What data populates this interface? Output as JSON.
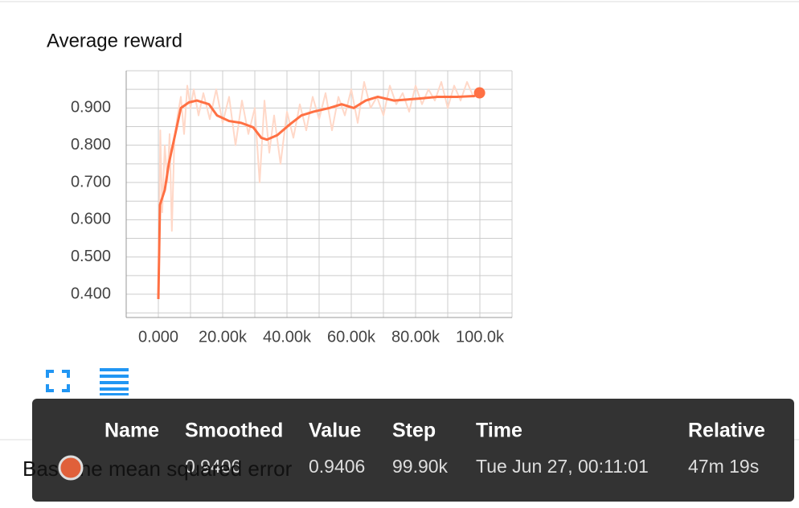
{
  "chart_data": {
    "type": "line",
    "title": "Average reward",
    "xlim": [
      -10000,
      110000
    ],
    "ylim": [
      0.3375,
      1.0
    ],
    "xticks": [
      {
        "value": 0,
        "label": "0.000"
      },
      {
        "value": 20000,
        "label": "20.00k"
      },
      {
        "value": 40000,
        "label": "40.00k"
      },
      {
        "value": 60000,
        "label": "60.00k"
      },
      {
        "value": 80000,
        "label": "80.00k"
      },
      {
        "value": 100000,
        "label": "100.0k"
      }
    ],
    "yticks": [
      {
        "value": 0.4,
        "label": "0.400"
      },
      {
        "value": 0.5,
        "label": "0.500"
      },
      {
        "value": 0.6,
        "label": "0.600"
      },
      {
        "value": 0.7,
        "label": "0.700"
      },
      {
        "value": 0.8,
        "label": "0.800"
      },
      {
        "value": 0.9,
        "label": "0.900"
      }
    ],
    "x_grid": [
      -10000,
      0,
      10000,
      20000,
      30000,
      40000,
      50000,
      60000,
      70000,
      80000,
      90000,
      100000,
      110000
    ],
    "y_grid": [
      0.35,
      0.4,
      0.45,
      0.5,
      0.55,
      0.6,
      0.65,
      0.7,
      0.75,
      0.8,
      0.85,
      0.9,
      0.95,
      1.0
    ],
    "grid": true,
    "series": [
      {
        "color": "#ffd8c8",
        "x": [
          0,
          600,
          1200,
          2000,
          2800,
          3500,
          4200,
          5000,
          6000,
          7000,
          8000,
          9000,
          10000,
          11000,
          12500,
          14000,
          16000,
          18000,
          20000,
          22000,
          24000,
          26000,
          28000,
          30000,
          31500,
          33000,
          34500,
          36000,
          38000,
          40000,
          42000,
          44000,
          46000,
          48000,
          50000,
          52000,
          54000,
          56000,
          58000,
          60000,
          62000,
          64000,
          66000,
          68000,
          70000,
          72000,
          74000,
          76000,
          78000,
          80000,
          82000,
          84000,
          86000,
          88000,
          90000,
          92000,
          94000,
          96000,
          98000,
          99900
        ],
        "values": [
          0.39,
          0.84,
          0.62,
          0.8,
          0.7,
          0.83,
          0.57,
          0.82,
          0.88,
          0.93,
          0.83,
          0.96,
          0.9,
          0.95,
          0.88,
          0.94,
          0.87,
          0.95,
          0.86,
          0.93,
          0.8,
          0.92,
          0.83,
          0.9,
          0.7,
          0.92,
          0.78,
          0.88,
          0.75,
          0.89,
          0.82,
          0.91,
          0.84,
          0.93,
          0.87,
          0.94,
          0.84,
          0.93,
          0.88,
          0.95,
          0.86,
          0.97,
          0.9,
          0.93,
          0.88,
          0.96,
          0.91,
          0.94,
          0.89,
          0.96,
          0.91,
          0.95,
          0.92,
          0.97,
          0.9,
          0.96,
          0.92,
          0.97,
          0.93,
          0.94
        ]
      },
      {
        "color": "#ff7043",
        "x": [
          0,
          500,
          2000,
          3250,
          5250,
          7000,
          9500,
          12000,
          15750,
          18250,
          22000,
          25750,
          29500,
          32000,
          33750,
          37000,
          40750,
          44500,
          48250,
          53250,
          57000,
          60750,
          64500,
          68250,
          73250,
          80750,
          87000,
          93250,
          98250,
          99900
        ],
        "values": [
          0.387,
          0.64,
          0.68,
          0.75,
          0.83,
          0.9,
          0.915,
          0.92,
          0.91,
          0.88,
          0.865,
          0.86,
          0.848,
          0.82,
          0.815,
          0.827,
          0.855,
          0.88,
          0.89,
          0.9,
          0.91,
          0.9,
          0.92,
          0.93,
          0.92,
          0.925,
          0.93,
          0.93,
          0.932,
          0.9406
        ]
      }
    ]
  },
  "card_below": {
    "title": "Baseline mean squared error"
  },
  "tooltip": {
    "headers": [
      "Name",
      "Smoothed",
      "Value",
      "Step",
      "Time",
      "Relative"
    ],
    "row": [
      "0.9406",
      "0.9406",
      "99.90k",
      "Tue Jun 27, 00:11:01",
      "47m 19s"
    ]
  }
}
